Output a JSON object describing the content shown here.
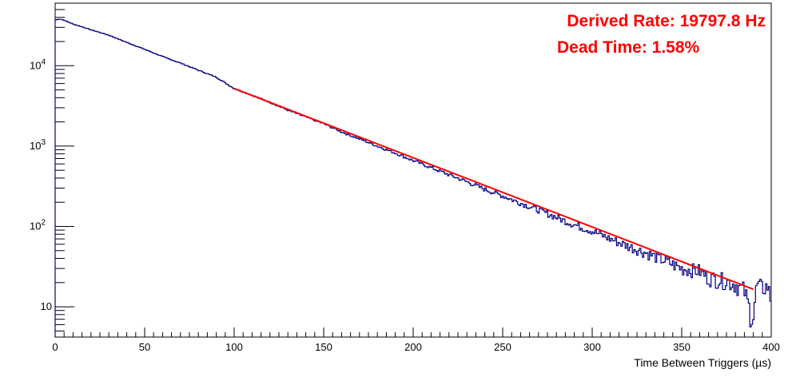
{
  "chart_data": {
    "type": "line",
    "title": "",
    "xlabel": "Time Between Triggers (µs)",
    "ylabel": "",
    "xlim": [
      0,
      400
    ],
    "ylim": [
      4.2,
      60000
    ],
    "y_scale": "log",
    "grid": false,
    "legend": "none",
    "x_ticks": [
      "0",
      "50",
      "100",
      "150",
      "200",
      "250",
      "300",
      "350",
      "400"
    ],
    "y_ticks": [
      {
        "value": 10,
        "label": "10"
      },
      {
        "value": 100,
        "label": "10",
        "exp": "2"
      },
      {
        "value": 1000,
        "label": "10",
        "exp": "3"
      },
      {
        "value": 10000,
        "label": "10",
        "exp": "4"
      }
    ],
    "annotations": [
      "Derived Rate: 19797.8 Hz",
      "Dead Time: 1.58%"
    ],
    "colors": {
      "histogram": "#000080",
      "fit": "#ff0000",
      "annotation": "#ff0000"
    },
    "series": [
      {
        "kind": "histogram",
        "x": [
          0,
          2,
          4,
          6,
          8,
          10,
          15,
          20,
          30,
          40,
          50,
          60,
          70,
          80,
          90,
          100,
          110,
          120,
          130,
          140,
          150,
          160,
          170,
          180,
          190,
          200,
          210,
          220,
          230,
          240,
          250,
          260,
          270,
          280,
          290,
          300,
          310,
          320,
          330,
          340,
          350,
          360,
          365,
          370,
          375,
          380,
          385,
          388,
          390,
          392,
          395,
          398,
          400
        ],
        "values": [
          37000,
          38000,
          37500,
          36000,
          34500,
          33000,
          30500,
          28000,
          24000,
          19500,
          16000,
          13000,
          10800,
          8800,
          7200,
          5200,
          4300,
          3500,
          2800,
          2300,
          1900,
          1500,
          1230,
          1000,
          820,
          660,
          540,
          440,
          360,
          290,
          240,
          195,
          160,
          130,
          105,
          88,
          70,
          57,
          47,
          38,
          30,
          28,
          23,
          22,
          21,
          19,
          16,
          9,
          8,
          19,
          17,
          18,
          12
        ]
      },
      {
        "kind": "fit",
        "x": [
          100,
          390
        ],
        "values": [
          5200,
          16.5
        ]
      }
    ]
  }
}
